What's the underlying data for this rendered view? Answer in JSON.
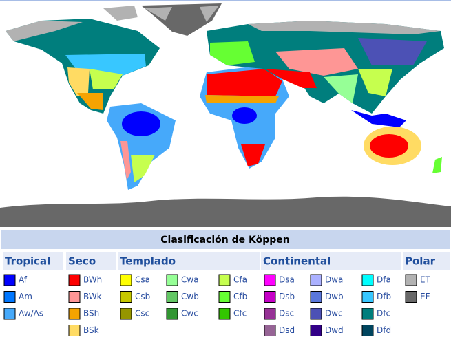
{
  "title": "Clasificación de Köppen",
  "legend": {
    "groups": [
      {
        "name": "Tropical",
        "columns": [
          {
            "items": [
              {
                "code": "Af",
                "color": "#0000fe"
              },
              {
                "code": "Am",
                "color": "#0077ff"
              },
              {
                "code": "Aw/As",
                "color": "#46a9fa"
              }
            ]
          }
        ]
      },
      {
        "name": "Seco",
        "columns": [
          {
            "items": [
              {
                "code": "BWh",
                "color": "#fe0000"
              },
              {
                "code": "BWk",
                "color": "#fe9695"
              },
              {
                "code": "BSh",
                "color": "#f5a301"
              },
              {
                "code": "BSk",
                "color": "#ffdb63"
              }
            ]
          }
        ]
      },
      {
        "name": "Templado",
        "columns": [
          {
            "items": [
              {
                "code": "Csa",
                "color": "#ffff00"
              },
              {
                "code": "Csb",
                "color": "#c6c700"
              },
              {
                "code": "Csc",
                "color": "#969600"
              }
            ]
          },
          {
            "items": [
              {
                "code": "Cwa",
                "color": "#96ff96"
              },
              {
                "code": "Cwb",
                "color": "#63c764"
              },
              {
                "code": "Cwc",
                "color": "#329633"
              }
            ]
          },
          {
            "items": [
              {
                "code": "Cfa",
                "color": "#c6ff4e"
              },
              {
                "code": "Cfb",
                "color": "#66ff33"
              },
              {
                "code": "Cfc",
                "color": "#33c701"
              }
            ]
          }
        ]
      },
      {
        "name": "Continental",
        "columns": [
          {
            "items": [
              {
                "code": "Dsa",
                "color": "#ff00fe"
              },
              {
                "code": "Dsb",
                "color": "#c600c7"
              },
              {
                "code": "Dsc",
                "color": "#963295"
              },
              {
                "code": "Dsd",
                "color": "#966495"
              }
            ]
          },
          {
            "items": [
              {
                "code": "Dwa",
                "color": "#abb1ff"
              },
              {
                "code": "Dwb",
                "color": "#5a77db"
              },
              {
                "code": "Dwc",
                "color": "#4c51b5"
              },
              {
                "code": "Dwd",
                "color": "#320087"
              }
            ]
          },
          {
            "items": [
              {
                "code": "Dfa",
                "color": "#00ffff"
              },
              {
                "code": "Dfb",
                "color": "#38c7ff"
              },
              {
                "code": "Dfc",
                "color": "#007e7d"
              },
              {
                "code": "Dfd",
                "color": "#00455e"
              }
            ]
          }
        ]
      },
      {
        "name": "Polar",
        "columns": [
          {
            "items": [
              {
                "code": "ET",
                "color": "#b2b2b2"
              },
              {
                "code": "EF",
                "color": "#686868"
              }
            ]
          }
        ]
      }
    ]
  }
}
